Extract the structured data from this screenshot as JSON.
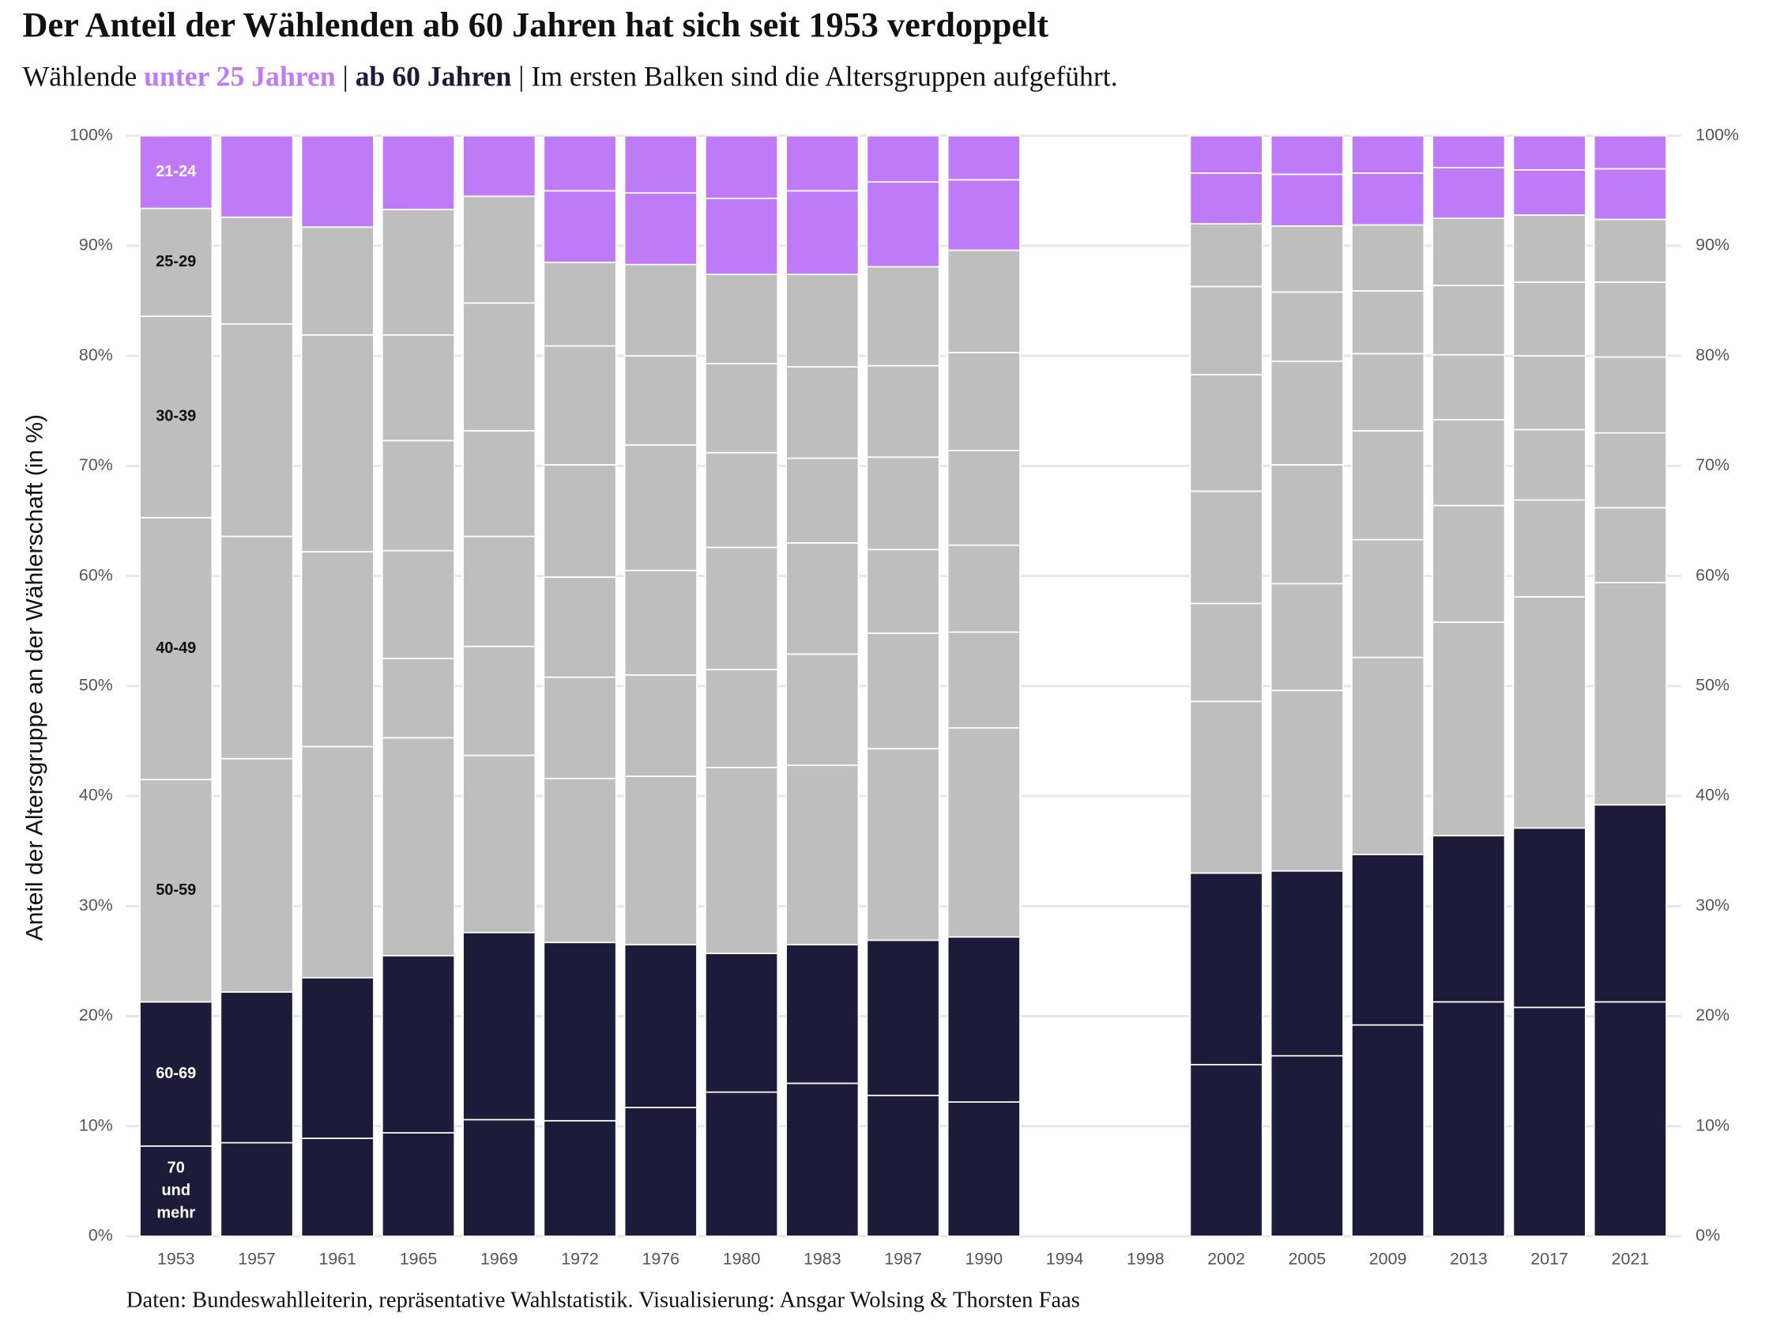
{
  "chart_data": {
    "type": "stacked_bar",
    "title": "Der Anteil der Wählenden ab 60 Jahren hat sich seit 1953 verdoppelt",
    "subtitle": [
      {
        "text": "Wählende "
      },
      {
        "text": "unter 25 Jahren",
        "color": "#bf7af7",
        "bold": true
      },
      {
        "text": " | "
      },
      {
        "text": "ab 60 Jahren",
        "color": "#1c1b3a",
        "bold": true
      },
      {
        "text": " | Im ersten Balken sind die Altersgruppen aufgeführt."
      }
    ],
    "y_label": "Anteil der Altersgruppe an der Wählerschaft (in %)",
    "caption": "Daten: Bundeswahlleiterin, repräsentative Wahlstatistik. Visualisierung: Ansgar Wolsing & Thorsten Faas",
    "colors": {
      "dark": "#1c1b3a",
      "gray": "#bebebe",
      "purple": "#bf7af7"
    },
    "ylim": [
      0,
      100
    ],
    "yticks": [
      {
        "value": 0,
        "label": "0%"
      },
      {
        "value": 10,
        "label": "10%"
      },
      {
        "value": 20,
        "label": "20%"
      },
      {
        "value": 30,
        "label": "30%"
      },
      {
        "value": 40,
        "label": "40%"
      },
      {
        "value": 50,
        "label": "50%"
      },
      {
        "value": 60,
        "label": "60%"
      },
      {
        "value": 70,
        "label": "70%"
      },
      {
        "value": 80,
        "label": "80%"
      },
      {
        "value": 90,
        "label": "90%"
      },
      {
        "value": 100,
        "label": "100%"
      }
    ],
    "grid": true,
    "categories": [
      "1953",
      "1957",
      "1961",
      "1965",
      "1969",
      "1972",
      "1976",
      "1980",
      "1983",
      "1987",
      "1990",
      "1994",
      "1998",
      "2002",
      "2005",
      "2009",
      "2013",
      "2017",
      "2021"
    ],
    "bars": [
      {
        "dark": [
          8.2,
          13.1
        ],
        "gray": [
          20.2,
          23.8,
          18.3,
          9.8
        ],
        "purple": [
          6.6
        ]
      },
      {
        "dark": [
          8.5,
          13.7
        ],
        "gray": [
          21.2,
          20.2,
          19.3,
          9.7
        ],
        "purple": [
          7.4
        ]
      },
      {
        "dark": [
          8.9,
          14.6
        ],
        "gray": [
          21.0,
          17.7,
          19.7,
          9.8
        ],
        "purple": [
          8.3
        ]
      },
      {
        "dark": [
          9.4,
          16.1
        ],
        "gray": [
          19.8,
          7.2,
          9.8,
          10.0,
          9.6,
          11.4
        ],
        "purple": [
          6.7
        ]
      },
      {
        "dark": [
          10.6,
          17.0
        ],
        "gray": [
          16.1,
          9.9,
          10.0,
          9.6,
          11.6,
          9.7
        ],
        "purple": [
          5.5
        ]
      },
      {
        "dark": [
          10.5,
          16.2
        ],
        "gray": [
          14.9,
          9.2,
          9.1,
          10.2,
          10.8,
          7.6
        ],
        "purple": [
          6.5,
          5.0
        ]
      },
      {
        "dark": [
          11.7,
          14.8
        ],
        "gray": [
          15.3,
          9.2,
          9.5,
          11.4,
          8.1,
          8.3
        ],
        "purple": [
          6.5,
          5.2
        ]
      },
      {
        "dark": [
          13.1,
          12.6
        ],
        "gray": [
          16.9,
          8.9,
          11.1,
          8.6,
          8.1,
          8.1
        ],
        "purple": [
          6.9,
          5.7
        ]
      },
      {
        "dark": [
          13.9,
          12.6
        ],
        "gray": [
          16.3,
          10.1,
          10.1,
          7.7,
          8.3,
          8.4
        ],
        "purple": [
          7.6,
          5.0
        ]
      },
      {
        "dark": [
          12.8,
          14.1
        ],
        "gray": [
          17.4,
          10.5,
          7.6,
          8.4,
          8.3,
          9.0
        ],
        "purple": [
          7.7,
          4.2
        ]
      },
      {
        "dark": [
          12.2,
          15.0
        ],
        "gray": [
          19.0,
          8.7,
          7.9,
          8.6,
          8.9,
          9.3
        ],
        "purple": [
          6.4,
          4.0
        ]
      },
      {
        "dark": [],
        "gray": [],
        "purple": []
      },
      {
        "dark": [],
        "gray": [],
        "purple": []
      },
      {
        "dark": [
          15.6,
          17.4
        ],
        "gray": [
          15.6,
          8.9,
          10.2,
          10.6,
          8.0,
          5.7
        ],
        "purple": [
          4.6,
          3.4
        ]
      },
      {
        "dark": [
          16.4,
          16.8
        ],
        "gray": [
          16.4,
          9.7,
          10.8,
          9.4,
          6.3,
          6.0
        ],
        "purple": [
          4.7,
          3.5
        ]
      },
      {
        "dark": [
          19.2,
          15.5
        ],
        "gray": [
          17.9,
          10.7,
          9.9,
          7.0,
          5.7,
          6.0
        ],
        "purple": [
          4.7,
          3.4
        ]
      },
      {
        "dark": [
          21.3,
          15.1
        ],
        "gray": [
          19.4,
          10.6,
          7.8,
          5.9,
          6.3,
          6.1
        ],
        "purple": [
          4.6,
          2.9
        ]
      },
      {
        "dark": [
          20.8,
          16.3
        ],
        "gray": [
          21.0,
          8.8,
          6.4,
          6.7,
          6.7,
          6.1
        ],
        "purple": [
          4.1,
          3.1
        ]
      },
      {
        "dark": [
          21.3,
          17.9
        ],
        "gray": [
          20.2,
          6.8,
          6.8,
          6.9,
          6.8,
          5.7
        ],
        "purple": [
          4.6,
          3.0
        ]
      }
    ],
    "segment_labels": [
      [
        "70",
        "und",
        "mehr"
      ],
      "60-69",
      "50-59",
      "40-49",
      "30-39",
      "25-29",
      "21-24"
    ]
  }
}
